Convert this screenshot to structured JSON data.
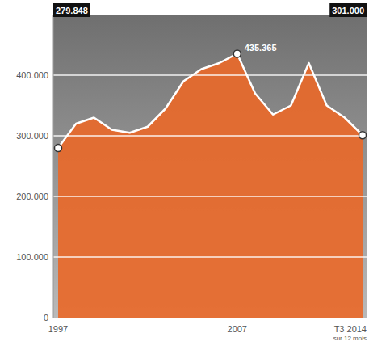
{
  "chart_data": {
    "type": "area",
    "categories": [
      "1997",
      null,
      null,
      null,
      null,
      null,
      null,
      null,
      null,
      null,
      "2007",
      null,
      null,
      null,
      null,
      null,
      null,
      "T3 2014"
    ],
    "x_note": "sur 12 mois",
    "values": [
      279848,
      320000,
      330000,
      310000,
      305000,
      315000,
      345000,
      390000,
      410000,
      420000,
      435365,
      370000,
      335000,
      350000,
      420000,
      350000,
      330000,
      301000
    ],
    "value_labels": [
      "279.848",
      null,
      null,
      null,
      null,
      null,
      null,
      null,
      null,
      null,
      "435.365",
      null,
      null,
      null,
      null,
      null,
      null,
      "301.000"
    ],
    "data_labels": true,
    "color": "#e8692a",
    "ylim": [
      0,
      500000
    ],
    "yticks": [
      0,
      {
        "value": 100000,
        "label": "100.000"
      },
      {
        "value": 200000,
        "label": "200.000"
      },
      {
        "value": 300000,
        "label": "300.000"
      },
      {
        "value": 400000,
        "label": "400.000"
      }
    ],
    "grid": true
  }
}
